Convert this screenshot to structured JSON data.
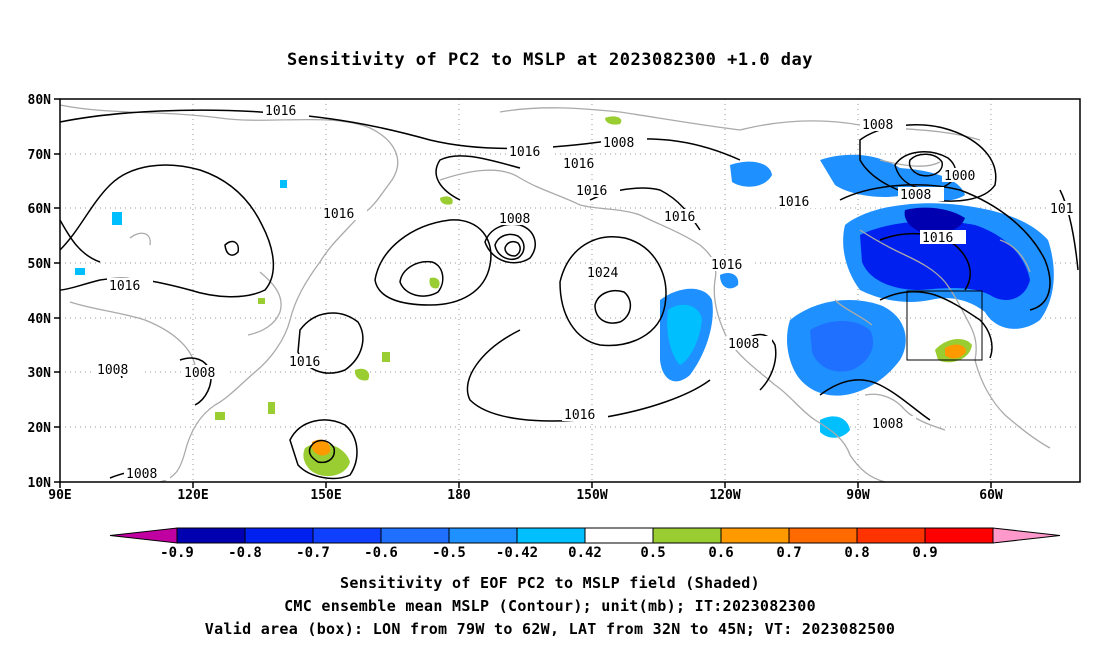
{
  "title": "Sensitivity of PC2 to MSLP at 2023082300 +1.0 day",
  "map": {
    "lat_labels": [
      "80N",
      "70N",
      "60N",
      "50N",
      "40N",
      "30N",
      "20N",
      "10N"
    ],
    "lon_labels": [
      "90E",
      "120E",
      "150E",
      "180",
      "150W",
      "120W",
      "90W",
      "60W"
    ],
    "contour_labels": [
      {
        "text": "1016"
      },
      {
        "text": "1008"
      },
      {
        "text": "1016"
      },
      {
        "text": "1016"
      },
      {
        "text": "1016"
      },
      {
        "text": "1008"
      },
      {
        "text": "1016"
      },
      {
        "text": "1008"
      },
      {
        "text": "1024"
      },
      {
        "text": "1016"
      },
      {
        "text": "1016"
      },
      {
        "text": "1016"
      },
      {
        "text": "1008"
      },
      {
        "text": "1000"
      },
      {
        "text": "1008"
      },
      {
        "text": "1016"
      },
      {
        "text": "101"
      },
      {
        "text": "1016"
      },
      {
        "text": "1008"
      },
      {
        "text": "1008"
      },
      {
        "text": "1016"
      },
      {
        "text": "1008"
      },
      {
        "text": "1008"
      },
      {
        "text": "1016"
      }
    ],
    "valid_box": {
      "lon_from": "79W",
      "lon_to": "62W",
      "lat_from": "32N",
      "lat_to": "45N"
    }
  },
  "colorbar": {
    "labels": [
      "-0.9",
      "-0.8",
      "-0.7",
      "-0.6",
      "-0.5",
      "-0.42",
      "0.42",
      "0.5",
      "0.6",
      "0.7",
      "0.8",
      "0.9"
    ],
    "colors": [
      "#c000a0",
      "#0000b0",
      "#0020f0",
      "#1040ff",
      "#2070ff",
      "#1e90ff",
      "#00bfff",
      "#ffffff",
      "#9acd32",
      "#ff9900",
      "#ff6a00",
      "#ff3300",
      "#ff0000",
      "#ff99cc"
    ]
  },
  "captions": {
    "line1": "Sensitivity of EOF PC2 to MSLP field (Shaded)",
    "line2": "CMC ensemble mean MSLP (Contour); unit(mb); IT:2023082300",
    "line3": "Valid area (box): LON from 79W to 62W, LAT from 32N to 45N; VT: 2023082500"
  }
}
